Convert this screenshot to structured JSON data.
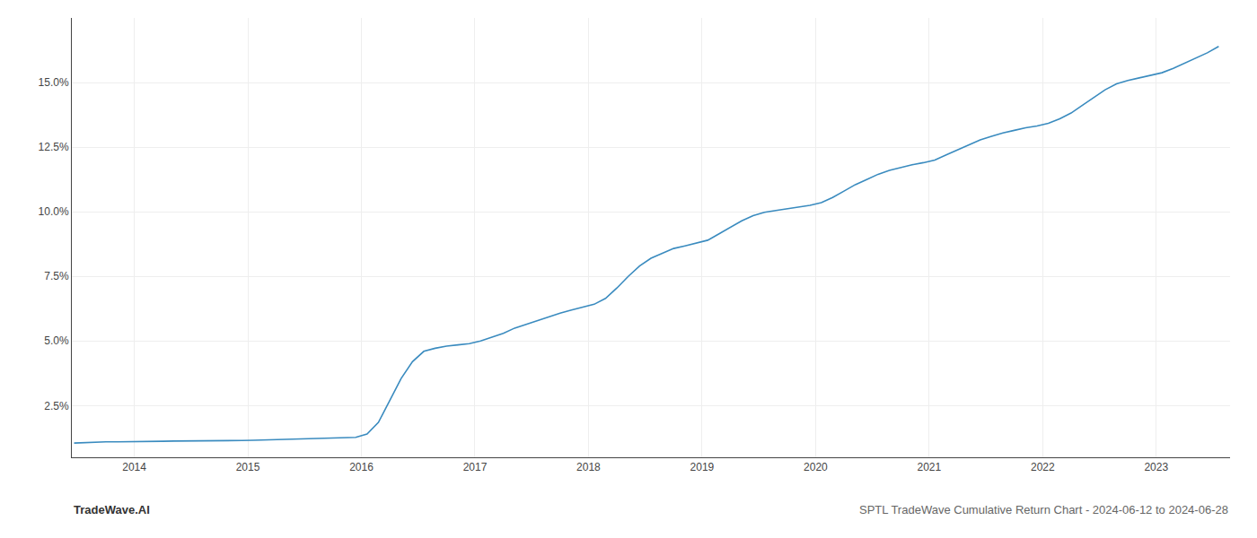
{
  "chart_data": {
    "type": "line",
    "title": "SPTL TradeWave Cumulative Return Chart - 2024-06-12 to 2024-06-28",
    "annotations": [
      "TradeWave.AI"
    ],
    "color": "#3a8bbf",
    "x": [
      2013.47,
      2013.55,
      2013.65,
      2013.75,
      2013.85,
      2013.95,
      2014.05,
      2014.15,
      2014.25,
      2014.35,
      2014.45,
      2014.55,
      2014.65,
      2014.75,
      2014.85,
      2014.95,
      2015.05,
      2015.15,
      2015.25,
      2015.35,
      2015.45,
      2015.55,
      2015.65,
      2015.75,
      2015.85,
      2015.95,
      2016.05,
      2016.15,
      2016.25,
      2016.35,
      2016.45,
      2016.55,
      2016.65,
      2016.75,
      2016.85,
      2016.95,
      2017.05,
      2017.15,
      2017.25,
      2017.35,
      2017.45,
      2017.55,
      2017.65,
      2017.75,
      2017.85,
      2017.95,
      2018.05,
      2018.15,
      2018.25,
      2018.35,
      2018.45,
      2018.55,
      2018.65,
      2018.75,
      2018.85,
      2018.95,
      2019.05,
      2019.15,
      2019.25,
      2019.35,
      2019.45,
      2019.55,
      2019.65,
      2019.75,
      2019.85,
      2019.95,
      2020.05,
      2020.15,
      2020.25,
      2020.35,
      2020.45,
      2020.55,
      2020.65,
      2020.75,
      2020.85,
      2020.95,
      2021.05,
      2021.15,
      2021.25,
      2021.35,
      2021.45,
      2021.55,
      2021.65,
      2021.75,
      2021.85,
      2021.95,
      2022.05,
      2022.15,
      2022.25,
      2022.35,
      2022.45,
      2022.55,
      2022.65,
      2022.75,
      2022.85,
      2022.95,
      2023.05,
      2023.15,
      2023.25,
      2023.35,
      2023.45,
      2023.55
    ],
    "values": [
      1.05,
      1.07,
      1.08,
      1.1,
      1.1,
      1.1,
      1.1,
      1.11,
      1.12,
      1.13,
      1.13,
      1.13,
      1.14,
      1.15,
      1.15,
      1.15,
      1.16,
      1.17,
      1.18,
      1.19,
      1.2,
      1.21,
      1.22,
      1.23,
      1.25,
      1.27,
      1.4,
      1.85,
      2.7,
      3.55,
      4.2,
      4.6,
      4.72,
      4.8,
      4.85,
      4.9,
      5.0,
      5.15,
      5.3,
      5.5,
      5.65,
      5.8,
      5.95,
      6.08,
      6.2,
      6.3,
      6.42,
      6.65,
      7.05,
      7.5,
      7.9,
      8.2,
      8.4,
      8.58,
      8.68,
      8.78,
      8.9,
      9.15,
      9.4,
      9.65,
      9.85,
      9.98,
      10.05,
      10.12,
      10.18,
      10.25,
      10.35,
      10.55,
      10.8,
      11.05,
      11.25,
      11.45,
      11.6,
      11.72,
      11.82,
      11.9,
      12.0,
      12.2,
      12.4,
      12.6,
      12.78,
      12.92,
      13.05,
      13.15,
      13.25,
      13.32,
      13.42,
      13.6,
      13.82,
      14.12,
      14.42,
      14.72,
      14.95,
      15.08,
      15.18,
      15.28,
      15.38,
      15.55,
      15.75,
      15.95,
      16.15,
      16.4
    ],
    "xlim": [
      2013.45,
      2023.65
    ],
    "ylim": [
      0.5,
      17.5
    ],
    "xticks": [
      2014,
      2015,
      2016,
      2017,
      2018,
      2019,
      2020,
      2021,
      2022,
      2023
    ],
    "yticks": [
      {
        "value": 2.5,
        "label": "2.5%"
      },
      {
        "value": 5.0,
        "label": "5.0%"
      },
      {
        "value": 7.5,
        "label": "7.5%"
      },
      {
        "value": 10.0,
        "label": "10.0%"
      },
      {
        "value": 12.5,
        "label": "12.5%"
      },
      {
        "value": 15.0,
        "label": "15.0%"
      }
    ],
    "grid": true
  }
}
